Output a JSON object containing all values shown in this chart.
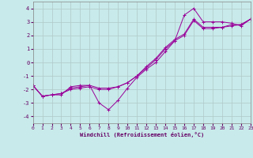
{
  "xlabel": "Windchill (Refroidissement éolien,°C)",
  "ylabel": "",
  "background_color": "#c8eaea",
  "line_color": "#990099",
  "grid_color": "#b0c8c8",
  "xlim": [
    0,
    23
  ],
  "ylim": [
    -4.5,
    4.5
  ],
  "yticks": [
    -4,
    -3,
    -2,
    -1,
    0,
    1,
    2,
    3,
    4
  ],
  "xticks": [
    0,
    1,
    2,
    3,
    4,
    5,
    6,
    7,
    8,
    9,
    10,
    11,
    12,
    13,
    14,
    15,
    16,
    17,
    18,
    19,
    20,
    21,
    22,
    23
  ],
  "series": [
    {
      "x": [
        0,
        1,
        2,
        3,
        4,
        5,
        6,
        7,
        8,
        9,
        10,
        11,
        12,
        13,
        14,
        15,
        16,
        17,
        18,
        19,
        20,
        21,
        22,
        23
      ],
      "y": [
        -1.7,
        -2.5,
        -2.4,
        -2.4,
        -1.8,
        -1.7,
        -1.7,
        -3.0,
        -3.5,
        -2.8,
        -1.9,
        -1.1,
        -0.5,
        0.0,
        0.8,
        1.6,
        3.5,
        4.0,
        3.0,
        3.0,
        3.0,
        2.9,
        2.7,
        3.2
      ]
    },
    {
      "x": [
        0,
        1,
        2,
        3,
        4,
        5,
        6,
        7,
        8,
        9,
        10,
        11,
        12,
        13,
        14,
        15,
        16,
        17,
        18,
        19,
        20,
        21,
        22,
        23
      ],
      "y": [
        -1.7,
        -2.5,
        -2.4,
        -2.3,
        -1.9,
        -1.8,
        -1.7,
        -1.9,
        -1.9,
        -1.8,
        -1.5,
        -1.0,
        -0.4,
        0.2,
        1.0,
        1.6,
        2.0,
        3.1,
        2.5,
        2.5,
        2.6,
        2.7,
        2.8,
        3.2
      ]
    },
    {
      "x": [
        0,
        1,
        2,
        3,
        4,
        5,
        6,
        7,
        8,
        9,
        10,
        11,
        12,
        13,
        14,
        15,
        16,
        17,
        18,
        19,
        20,
        21,
        22,
        23
      ],
      "y": [
        -1.7,
        -2.5,
        -2.4,
        -2.3,
        -2.0,
        -1.9,
        -1.8,
        -2.0,
        -2.0,
        -1.8,
        -1.5,
        -1.0,
        -0.3,
        0.3,
        1.1,
        1.7,
        2.1,
        3.2,
        2.6,
        2.6,
        2.6,
        2.8,
        2.8,
        3.2
      ]
    }
  ]
}
